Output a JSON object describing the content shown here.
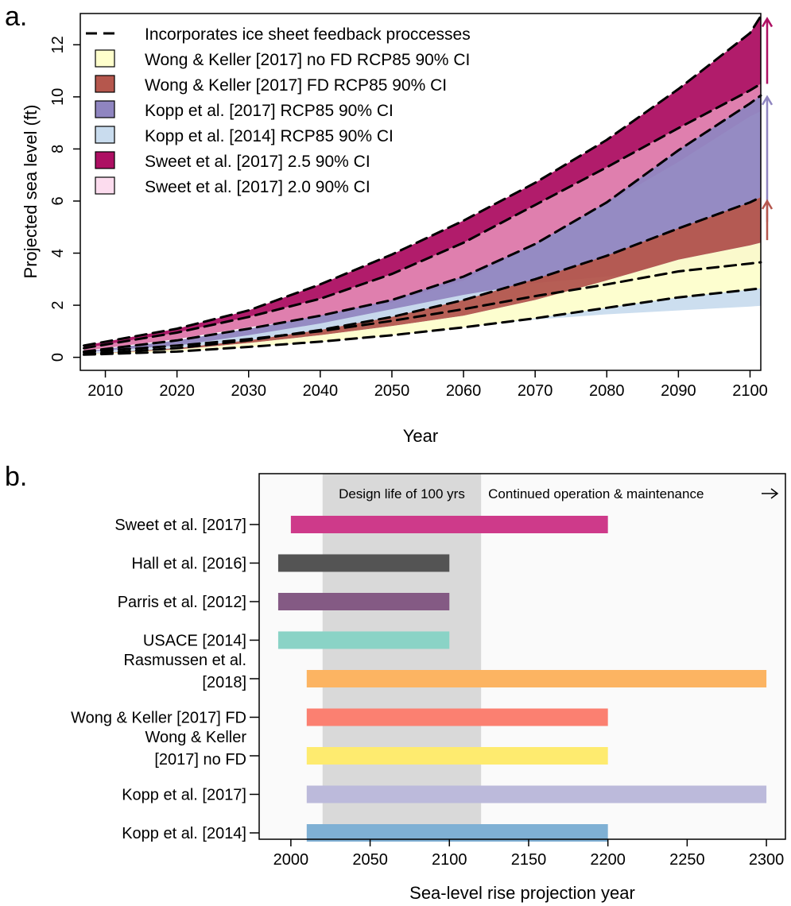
{
  "chart_data": [
    {
      "panel_label": "a.",
      "type": "area",
      "xlabel": "Year",
      "ylabel": "Projected sea level (ft)",
      "xlim": [
        2006.5,
        2101.5
      ],
      "ylim": [
        -0.5,
        13.2
      ],
      "xticks": [
        "2010",
        "2020",
        "2030",
        "2040",
        "2050",
        "2060",
        "2070",
        "2080",
        "2090",
        "2100"
      ],
      "yticks": [
        "0",
        "2",
        "4",
        "6",
        "8",
        "10",
        "12"
      ],
      "legend_position": "top-left",
      "legend": [
        {
          "label": "Incorporates ice sheet feedback proccesses",
          "style": "dashed-line",
          "color": "#000000"
        },
        {
          "label": "Wong & Keller [2017] no FD RCP85 90% CI",
          "color": "#ffffcc"
        },
        {
          "label": "Wong & Keller [2017] FD RCP85 90% CI",
          "color": "#b5574d"
        },
        {
          "label": "Kopp et al. [2017] RCP85 90% CI",
          "color": "#8f85c0"
        },
        {
          "label": "Kopp et al. [2014] RCP85 90% CI",
          "color": "#c9dcee"
        },
        {
          "label": "Sweet et al. [2017] 2.5 90% CI",
          "color": "#ad1063"
        },
        {
          "label": "Sweet et al. [2017] 2.0 90% CI",
          "color": "#fcdcee"
        }
      ],
      "x": [
        2007,
        2020,
        2030,
        2040,
        2050,
        2060,
        2070,
        2080,
        2090,
        2100,
        2101.5
      ],
      "series": [
        {
          "name": "Sweet et al. [2017] 2.5 90% CI",
          "color": "#ad1063",
          "dashed": true,
          "lower": [
            0.35,
            0.95,
            1.55,
            2.25,
            3.2,
            4.4,
            5.85,
            7.3,
            8.8,
            10.25,
            10.5
          ],
          "upper": [
            0.45,
            1.1,
            1.8,
            2.8,
            3.95,
            5.25,
            6.7,
            8.35,
            10.3,
            12.45,
            13.1
          ]
        },
        {
          "name": "Sweet et al. [2017] 2.0 90% CI",
          "color": "#dd78aa",
          "dashed": true,
          "lower": [
            0.25,
            0.7,
            1.15,
            1.55,
            2.1,
            2.95,
            4.3,
            5.9,
            7.5,
            9.25,
            9.45
          ],
          "upper": [
            0.35,
            0.95,
            1.55,
            2.25,
            3.2,
            4.4,
            5.85,
            7.3,
            8.8,
            10.25,
            10.5
          ]
        },
        {
          "name": "Kopp et al. [2017] RCP85 90% CI",
          "color": "#8f85c0",
          "dashed": true,
          "lower": [
            0.2,
            0.45,
            0.7,
            1.0,
            1.4,
            1.85,
            2.35,
            2.8,
            3.3,
            3.6,
            3.65
          ],
          "upper": [
            0.22,
            0.65,
            1.1,
            1.6,
            2.2,
            3.1,
            4.35,
            5.95,
            7.95,
            9.75,
            10.05
          ]
        },
        {
          "name": "Kopp et al. [2014] RCP85 90% CI",
          "color": "#c9dcee",
          "lower": [
            0.15,
            0.3,
            0.45,
            0.7,
            0.95,
            1.2,
            1.45,
            1.65,
            1.8,
            1.95,
            1.98
          ],
          "upper": [
            0.18,
            0.45,
            0.85,
            1.3,
            1.85,
            2.4,
            2.85,
            3.1,
            3.35,
            3.55,
            3.6
          ]
        },
        {
          "name": "Wong & Keller [2017] FD RCP85 90% CI",
          "color": "#b5574d",
          "dashed": true,
          "lower": [
            0.12,
            0.3,
            0.55,
            0.85,
            1.2,
            1.6,
            2.2,
            2.95,
            3.75,
            4.3,
            4.4
          ],
          "upper": [
            0.12,
            0.35,
            0.65,
            1.05,
            1.55,
            2.2,
            3.0,
            3.9,
            4.95,
            5.95,
            6.15
          ]
        },
        {
          "name": "Wong & Keller [2017] no FD RCP85 90% CI",
          "color": "#ffffcc",
          "dashed": true,
          "lower": [
            0.1,
            0.22,
            0.4,
            0.6,
            0.85,
            1.15,
            1.5,
            1.9,
            2.3,
            2.6,
            2.65
          ],
          "upper": [
            0.12,
            0.3,
            0.55,
            0.85,
            1.2,
            1.6,
            2.2,
            2.95,
            3.75,
            4.3,
            4.4
          ]
        }
      ],
      "dashed_curves": [
        {
          "name": "Sweet et al. [2017] 2.5 upper",
          "y": [
            0.45,
            1.1,
            1.8,
            2.8,
            3.95,
            5.25,
            6.7,
            8.35,
            10.3,
            12.45,
            13.1
          ]
        },
        {
          "name": "Sweet et al. [2017] 2.5 lower",
          "y": [
            0.35,
            0.95,
            1.55,
            2.25,
            3.2,
            4.4,
            5.85,
            7.3,
            8.8,
            10.25,
            10.5
          ]
        },
        {
          "name": "Kopp et al. [2017] upper",
          "y": [
            0.22,
            0.65,
            1.1,
            1.6,
            2.2,
            3.1,
            4.35,
            5.95,
            7.95,
            9.75,
            10.05
          ]
        },
        {
          "name": "Kopp et al. [2017] lower",
          "y": [
            0.2,
            0.45,
            0.7,
            1.0,
            1.4,
            1.85,
            2.35,
            2.8,
            3.3,
            3.6,
            3.65
          ]
        },
        {
          "name": "Wong & Keller [2017] FD upper",
          "y": [
            0.12,
            0.35,
            0.65,
            1.05,
            1.55,
            2.2,
            3.0,
            3.9,
            4.95,
            5.95,
            6.15
          ]
        },
        {
          "name": "Wong & Keller [2017] FD lower",
          "y": [
            0.1,
            0.22,
            0.4,
            0.6,
            0.85,
            1.15,
            1.5,
            1.9,
            2.3,
            2.6,
            2.65
          ]
        }
      ],
      "arrows": [
        {
          "color": "#ad1063",
          "y_from": 10.5,
          "y_to": 13.0
        },
        {
          "color": "#8f85c0",
          "y_from": 5.2,
          "y_to": 10.0
        },
        {
          "color": "#b5574d",
          "y_from": 4.5,
          "y_to": 6.0
        }
      ]
    },
    {
      "panel_label": "b.",
      "type": "bar",
      "orientation": "horizontal",
      "xlabel": "Sea-level rise projection year",
      "xlim": [
        1980,
        2312
      ],
      "xticks": [
        "2000",
        "2050",
        "2100",
        "2150",
        "2200",
        "2250",
        "2300"
      ],
      "shaded_region": {
        "label": "Design life of 100 yrs",
        "start": 2020,
        "end": 2120
      },
      "annotation": "Continued operation & maintenance",
      "categories": [
        {
          "label": [
            "Sweet et al. [2017]"
          ],
          "start": 2000,
          "end": 2200,
          "color": "#ce3a8a"
        },
        {
          "label": [
            "Hall et al. [2016]"
          ],
          "start": 1992,
          "end": 2100,
          "color": "#545454"
        },
        {
          "label": [
            "Parris et al. [2012]"
          ],
          "start": 1992,
          "end": 2100,
          "color": "#845a84"
        },
        {
          "label": [
            "USACE [2014]"
          ],
          "start": 1992,
          "end": 2100,
          "color": "#8ad3c6"
        },
        {
          "label": [
            "Rasmussen et al.",
            "[2018]"
          ],
          "start": 2010,
          "end": 2300,
          "color": "#fcb462"
        },
        {
          "label": [
            "Wong & Keller [2017] FD"
          ],
          "start": 2010,
          "end": 2200,
          "color": "#fb8071"
        },
        {
          "label": [
            "Wong & Keller",
            "[2017] no FD"
          ],
          "start": 2010,
          "end": 2200,
          "color": "#feeb6f"
        },
        {
          "label": [
            "Kopp et al. [2017]"
          ],
          "start": 2010,
          "end": 2300,
          "color": "#bcbadb"
        },
        {
          "label": [
            "Kopp et al. [2014]"
          ],
          "start": 2010,
          "end": 2200,
          "color": "#7fb0d4"
        }
      ]
    }
  ]
}
